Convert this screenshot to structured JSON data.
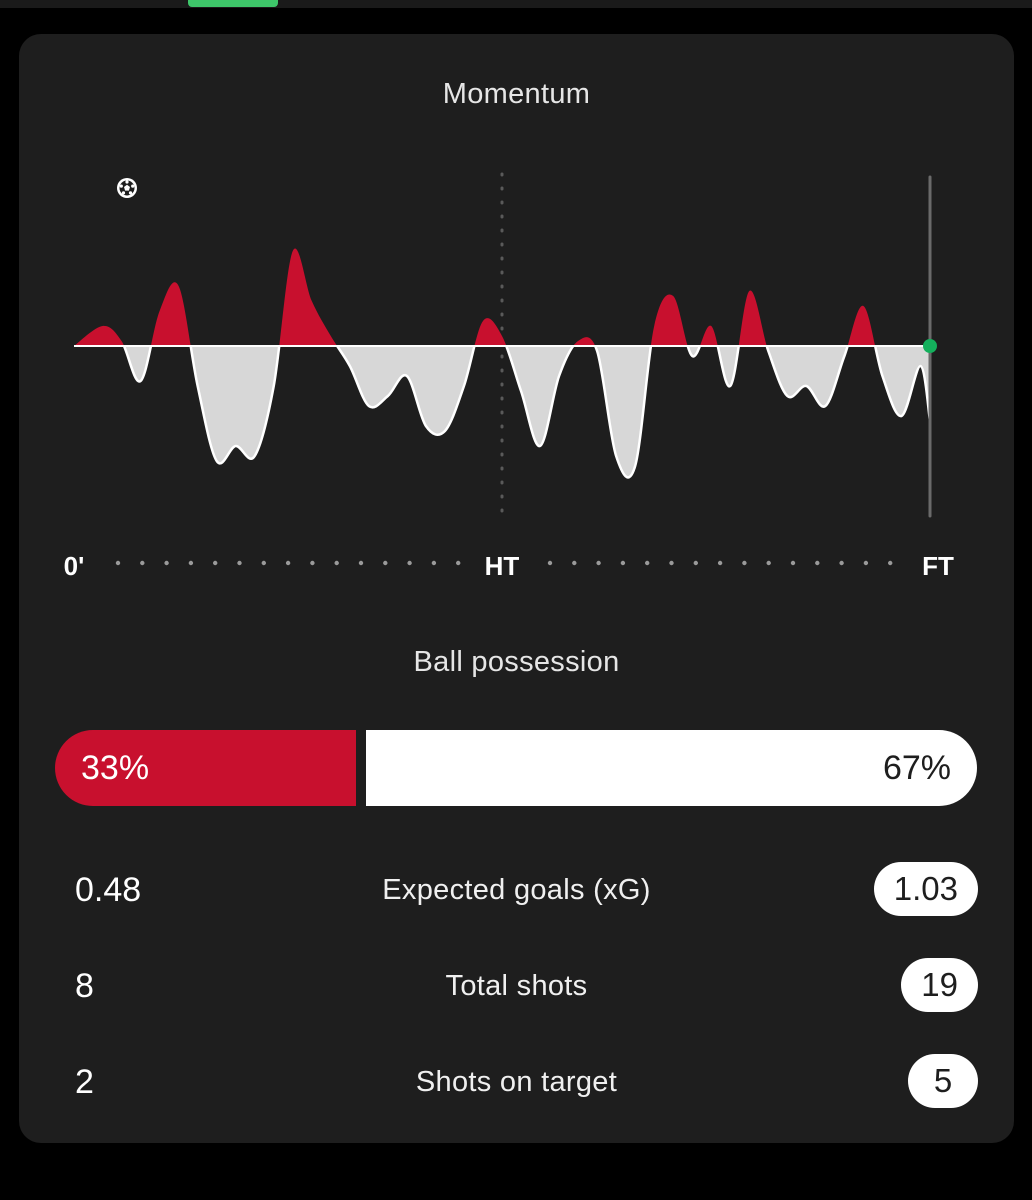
{
  "colors": {
    "home": "#c8102e",
    "away": "#d7d7d7",
    "accent_green": "#3ec66a",
    "marker_green": "#14b05c",
    "card_background": "#1e1e1e"
  },
  "momentum": {
    "title": "Momentum",
    "goal_icon": "soccer-ball-icon",
    "axis_labels": {
      "start": "0'",
      "half": "HT",
      "end": "FT"
    },
    "chart_data": {
      "type": "area",
      "description_series": [
        {
          "name": "home",
          "color": "#c8102e"
        },
        {
          "name": "away",
          "color": "#d7d7d7"
        }
      ],
      "x_labels": [
        "0'",
        "HT",
        "FT"
      ],
      "x": [
        0,
        3,
        5,
        7,
        9,
        11,
        13,
        15,
        17,
        19,
        21,
        23,
        25,
        27,
        29,
        31,
        33,
        35,
        37,
        39,
        41,
        43,
        45,
        47,
        49,
        51,
        53,
        55,
        57,
        59,
        61,
        63,
        65,
        67,
        69,
        71,
        73,
        75,
        77,
        79,
        81,
        83,
        85,
        87,
        89,
        90
      ],
      "values": [
        0,
        20,
        5,
        -35,
        35,
        60,
        -40,
        -115,
        -100,
        -110,
        -40,
        95,
        45,
        10,
        -20,
        -60,
        -50,
        -30,
        -80,
        -85,
        -40,
        25,
        10,
        -45,
        -100,
        -30,
        5,
        -5,
        -110,
        -120,
        20,
        50,
        -10,
        20,
        -40,
        55,
        -5,
        -50,
        -40,
        -60,
        -10,
        40,
        -30,
        -70,
        -20,
        -75
      ],
      "ylim": [
        -125,
        100
      ]
    }
  },
  "possession": {
    "title": "Ball possession",
    "home_value": 33,
    "away_value": 67,
    "home_label": "33%",
    "away_label": "67%"
  },
  "stats": [
    {
      "label": "Expected goals (xG)",
      "home": "0.48",
      "away": "1.03"
    },
    {
      "label": "Total shots",
      "home": "8",
      "away": "19"
    },
    {
      "label": "Shots on target",
      "home": "2",
      "away": "5"
    }
  ]
}
